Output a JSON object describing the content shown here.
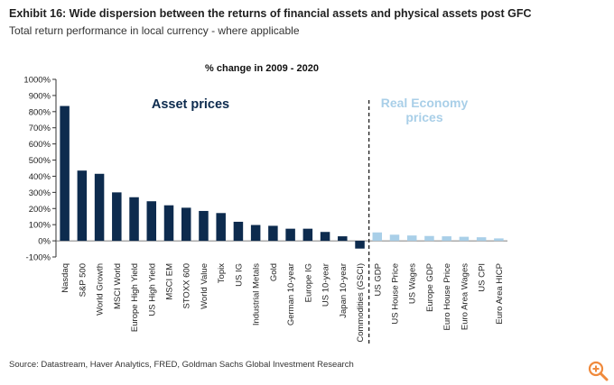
{
  "header": {
    "title": "Exhibit 16: Wide dispersion between the returns of financial assets and physical assets post GFC",
    "subtitle": "Total return performance in local currency - where applicable"
  },
  "footer": {
    "source": "Source: Datastream, Haver Analytics, FRED, Goldman Sachs Global Investment Research"
  },
  "zoom_icon": "zoom-in-icon",
  "colors": {
    "asset": "#0d2b4e",
    "real": "#a9cfe8",
    "real_label": "#a9cfe8",
    "asset_label": "#0d2b4e",
    "zoom": "#f08a3c"
  },
  "chart_data": {
    "type": "bar",
    "title": "% change in 2009 - 2020",
    "xlabel": "",
    "ylabel": "",
    "ylim": [
      -100,
      1000
    ],
    "yticks": [
      -100,
      0,
      100,
      200,
      300,
      400,
      500,
      600,
      700,
      800,
      900,
      1000
    ],
    "ytick_labels": [
      "-100%",
      "0%",
      "100%",
      "200%",
      "300%",
      "400%",
      "500%",
      "600%",
      "700%",
      "800%",
      "900%",
      "1000%"
    ],
    "grid": false,
    "annotations": [
      "Asset prices",
      "Real Economy prices"
    ],
    "categories": [
      "Nasdaq",
      "S&P 500",
      "World Growth",
      "MSCI World",
      "Europe High Yield",
      "US High Yield",
      "MSCI EM",
      "STOXX 600",
      "World Value",
      "Topix",
      "US IG",
      "Industrial Metals",
      "Gold",
      "German 10-year",
      "Europe IG",
      "US 10-year",
      "Japan 10-year",
      "Commodities (GSCI)",
      "US GDP",
      "US House Price",
      "US Wages",
      "Europe GDP",
      "Euro House Price",
      "Euro Area Wages",
      "US CPI",
      "Euro Area HICP"
    ],
    "series": [
      {
        "values": [
          835,
          435,
          415,
          300,
          270,
          245,
          220,
          205,
          185,
          172,
          118,
          98,
          93,
          75,
          75,
          55,
          28,
          -48,
          52,
          38,
          33,
          30,
          28,
          25,
          22,
          15
        ],
        "groups": [
          "asset",
          "asset",
          "asset",
          "asset",
          "asset",
          "asset",
          "asset",
          "asset",
          "asset",
          "asset",
          "asset",
          "asset",
          "asset",
          "asset",
          "asset",
          "asset",
          "asset",
          "asset",
          "real",
          "real",
          "real",
          "real",
          "real",
          "real",
          "real",
          "real"
        ]
      }
    ]
  }
}
